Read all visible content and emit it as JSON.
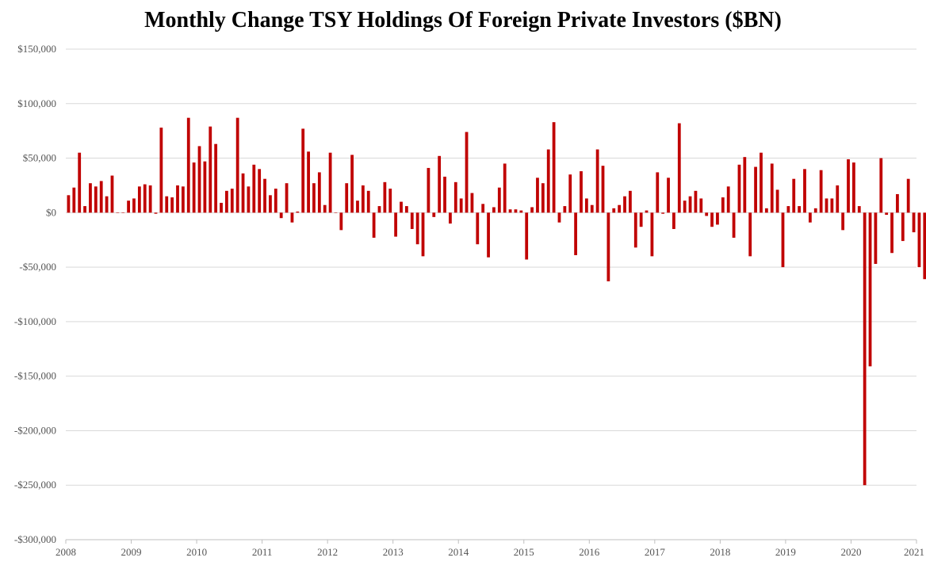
{
  "chart_data": {
    "type": "bar",
    "title": "Monthly Change TSY Holdings Of Foreign Private Investors ($BN)",
    "xlabel": "",
    "ylabel": "",
    "ylim": [
      -300000,
      150000
    ],
    "y_ticks": [
      150000,
      100000,
      50000,
      0,
      -50000,
      -100000,
      -150000,
      -200000,
      -250000,
      -300000
    ],
    "y_tick_labels": [
      "$150,000",
      "$100,000",
      "$50,000",
      "$0",
      "-$50,000",
      "-$100,000",
      "-$150,000",
      "-$200,000",
      "-$250,000",
      "-$300,000"
    ],
    "x_tick_labels": [
      "2008",
      "2009",
      "2010",
      "2011",
      "2012",
      "2013",
      "2014",
      "2015",
      "2016",
      "2017",
      "2018",
      "2019",
      "2020",
      "2021"
    ],
    "grid": true,
    "legend": "none",
    "bar_color": "#c00000",
    "x_start_year": 2008,
    "series": [
      {
        "values": [
          16000,
          23000,
          55000,
          6000,
          27000,
          24000,
          29000,
          15000,
          34000,
          0,
          0,
          11000,
          13000,
          24000,
          26000,
          25000,
          -1000,
          78000,
          15000,
          14000,
          25000,
          24000,
          87000,
          46000,
          61000,
          47000,
          79000,
          63000,
          9000,
          20000,
          22000,
          87000,
          36000,
          24000,
          44000,
          40000,
          31000,
          16000,
          22000,
          -5000,
          27000,
          -9000,
          1000,
          77000,
          56000,
          27000,
          37000,
          7000,
          55000,
          0,
          -16000,
          27000,
          53000,
          11000,
          25000,
          20000,
          -23000,
          6000,
          28000,
          22000,
          -22000,
          10000,
          6000,
          -15000,
          -29000,
          -40000,
          41000,
          -4000,
          52000,
          33000,
          -10000,
          28000,
          13000,
          74000,
          18000,
          -29000,
          8000,
          -41000,
          5000,
          23000,
          45000,
          3000,
          3000,
          2000,
          -43000,
          5000,
          32000,
          27000,
          58000,
          83000,
          -9000,
          6000,
          35000,
          -39000,
          38000,
          13000,
          7000,
          58000,
          43000,
          -63000,
          4000,
          7000,
          15000,
          20000,
          -32000,
          -13000,
          2000,
          -40000,
          37000,
          -1000,
          32000,
          -15000,
          82000,
          11000,
          15000,
          20000,
          13000,
          -3000,
          -13000,
          -11000,
          14000,
          24000,
          -23000,
          44000,
          51000,
          -40000,
          42000,
          55000,
          4000,
          45000,
          21000,
          -50000,
          6000,
          31000,
          6000,
          40000,
          -9000,
          4000,
          39000,
          13000,
          13000,
          25000,
          -16000,
          49000,
          46000,
          6000,
          -250000,
          -141000,
          -47000,
          50000,
          -2000,
          -37000,
          17000,
          -26000,
          31000,
          -18000,
          -50000,
          -61000
        ]
      }
    ]
  }
}
